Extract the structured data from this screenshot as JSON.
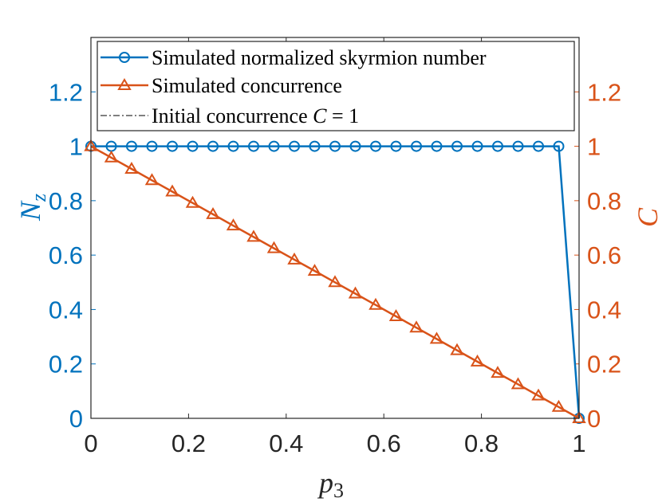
{
  "chart_data": {
    "type": "line",
    "x": [
      0,
      0.0417,
      0.0833,
      0.125,
      0.1667,
      0.2083,
      0.25,
      0.2917,
      0.3333,
      0.375,
      0.4167,
      0.4583,
      0.5,
      0.5417,
      0.5833,
      0.625,
      0.6667,
      0.7083,
      0.75,
      0.7917,
      0.8333,
      0.875,
      0.9167,
      0.9583,
      1
    ],
    "series": [
      {
        "name": "Simulated normalized skyrmion number",
        "axis": "left",
        "marker": "circle",
        "color": "#0072BD",
        "values": [
          1,
          1,
          1,
          1,
          1,
          1,
          1,
          1,
          1,
          1,
          1,
          1,
          1,
          1,
          1,
          1,
          1,
          1,
          1,
          1,
          1,
          1,
          1,
          1,
          0
        ]
      },
      {
        "name": "Simulated concurrence",
        "axis": "right",
        "marker": "triangle",
        "color": "#D95319",
        "values": [
          1,
          0.9583,
          0.9167,
          0.875,
          0.8333,
          0.7917,
          0.75,
          0.7083,
          0.6667,
          0.625,
          0.5833,
          0.5417,
          0.5,
          0.4583,
          0.4167,
          0.375,
          0.3333,
          0.2917,
          0.25,
          0.2083,
          0.1667,
          0.125,
          0.0833,
          0.0417,
          0
        ]
      }
    ],
    "legend": {
      "position": "top",
      "entries": [
        {
          "text": "Simulated normalized skyrmion number",
          "style": "circle-line",
          "color": "#0072BD"
        },
        {
          "text": "Simulated concurrence",
          "style": "triangle-line",
          "color": "#D95319"
        },
        {
          "text": "Initial concurrence C = 1",
          "style": "dashdot-line",
          "color": "#000000"
        }
      ]
    },
    "xlabel": "p3",
    "ylabel_left": "Nz",
    "ylabel_right": "C",
    "xlim": [
      0,
      1
    ],
    "ylim_left": [
      0,
      1.4
    ],
    "ylim_right": [
      0,
      1.4
    ],
    "xticks": [
      "0",
      "0.2",
      "0.4",
      "0.6",
      "0.8",
      "1"
    ],
    "yticks_left": [
      "0",
      "0.2",
      "0.4",
      "0.6",
      "0.8",
      "1",
      "1.2"
    ],
    "yticks_right": [
      "0",
      "0.2",
      "0.4",
      "0.6",
      "0.8",
      "1",
      "1.2"
    ],
    "grid": false
  }
}
